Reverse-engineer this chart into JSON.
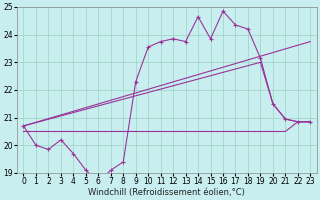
{
  "background_color": "#c8eef0",
  "grid_color": "#a0d8c8",
  "line_color": "#993399",
  "xlim": [
    -0.5,
    23.5
  ],
  "ylim": [
    19,
    25
  ],
  "yticks": [
    19,
    20,
    21,
    22,
    23,
    24,
    25
  ],
  "xticks": [
    0,
    1,
    2,
    3,
    4,
    5,
    6,
    7,
    8,
    9,
    10,
    11,
    12,
    13,
    14,
    15,
    16,
    17,
    18,
    19,
    20,
    21,
    22,
    23
  ],
  "xlabel": "Windchill (Refroidissement éolien,°C)",
  "xlabel_fontsize": 6.0,
  "tick_fontsize": 5.5,
  "line1_x": [
    0,
    1,
    2,
    3,
    4,
    5,
    6,
    7,
    8,
    9,
    10,
    11,
    12,
    13,
    14,
    15,
    16,
    17,
    18,
    19,
    20,
    21,
    22,
    23
  ],
  "line1_y": [
    20.7,
    20.0,
    19.85,
    20.2,
    19.7,
    19.1,
    18.65,
    19.1,
    19.4,
    22.3,
    23.55,
    23.75,
    23.85,
    23.75,
    24.65,
    23.85,
    24.85,
    24.35,
    24.2,
    23.15,
    21.5,
    20.95,
    20.85,
    20.85
  ],
  "line2_x": [
    0,
    23
  ],
  "line2_y": [
    20.7,
    23.75
  ],
  "line3_x": [
    0,
    19,
    20,
    21,
    22,
    23
  ],
  "line3_y": [
    20.7,
    23.0,
    21.5,
    20.95,
    20.85,
    20.85
  ],
  "line4_x": [
    0,
    9,
    10,
    11,
    12,
    13,
    14,
    15,
    16,
    17,
    18,
    19,
    20,
    21,
    22,
    23
  ],
  "line4_y": [
    20.5,
    20.5,
    20.5,
    20.5,
    20.5,
    20.5,
    20.5,
    20.5,
    20.5,
    20.5,
    20.5,
    20.5,
    20.5,
    20.5,
    20.85,
    20.85
  ]
}
